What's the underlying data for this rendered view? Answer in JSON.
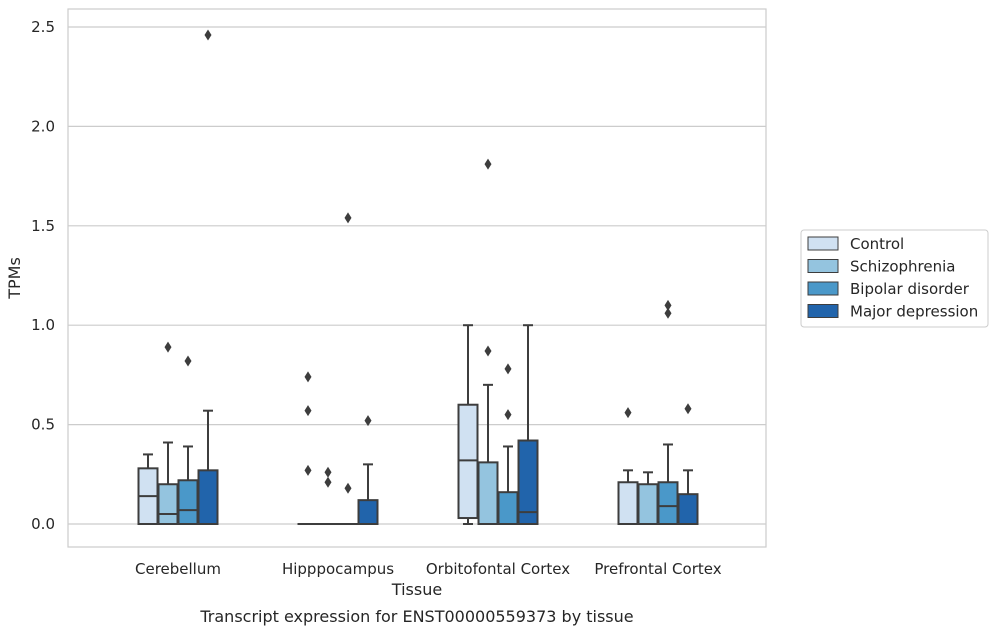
{
  "caption": "Transcript expression for ENST00000559373 by tissue",
  "chart_data": {
    "type": "box",
    "title": "",
    "xlabel": "Tissue",
    "ylabel": "TPMs",
    "ylim": [
      -0.12,
      2.59
    ],
    "yticks": [
      "0.0",
      "0.5",
      "1.0",
      "1.5",
      "2.0",
      "2.5"
    ],
    "ytick_values": [
      0,
      0.5,
      1.0,
      1.5,
      2.0,
      2.5
    ],
    "grid": "horizontal",
    "legend_position": "right",
    "categories": [
      "Cerebellum",
      "Hipppocampus",
      "Orbitofontal Cortex",
      "Prefrontal Cortex"
    ],
    "series": [
      {
        "name": "Control",
        "color": "#d0e1f2",
        "boxes": [
          {
            "whisker_low": 0,
            "q1": 0,
            "median": 0.14,
            "q3": 0.28,
            "whisker_high": 0.35,
            "outliers": []
          },
          {
            "whisker_low": 0,
            "q1": 0,
            "median": 0,
            "q3": 0,
            "whisker_high": 0,
            "outliers": [
              0.74,
              0.57,
              0.27
            ]
          },
          {
            "whisker_low": 0,
            "q1": 0.03,
            "median": 0.32,
            "q3": 0.6,
            "whisker_high": 1.0,
            "outliers": []
          },
          {
            "whisker_low": 0,
            "q1": 0,
            "median": 0,
            "q3": 0.21,
            "whisker_high": 0.27,
            "outliers": [
              0.56
            ]
          }
        ]
      },
      {
        "name": "Schizophrenia",
        "color": "#94c4df",
        "boxes": [
          {
            "whisker_low": 0,
            "q1": 0,
            "median": 0.05,
            "q3": 0.2,
            "whisker_high": 0.41,
            "outliers": [
              0.89
            ]
          },
          {
            "whisker_low": 0,
            "q1": 0,
            "median": 0,
            "q3": 0,
            "whisker_high": 0,
            "outliers": [
              0.26,
              0.21
            ]
          },
          {
            "whisker_low": 0,
            "q1": 0,
            "median": 0,
            "q3": 0.31,
            "whisker_high": 0.7,
            "outliers": [
              0.87,
              1.81
            ]
          },
          {
            "whisker_low": 0,
            "q1": 0,
            "median": 0,
            "q3": 0.2,
            "whisker_high": 0.26,
            "outliers": []
          }
        ]
      },
      {
        "name": "Bipolar disorder",
        "color": "#4a98c9",
        "boxes": [
          {
            "whisker_low": 0,
            "q1": 0,
            "median": 0.07,
            "q3": 0.22,
            "whisker_high": 0.39,
            "outliers": [
              0.82
            ]
          },
          {
            "whisker_low": 0,
            "q1": 0,
            "median": 0,
            "q3": 0,
            "whisker_high": 0,
            "outliers": [
              0.18,
              1.54
            ]
          },
          {
            "whisker_low": 0,
            "q1": 0,
            "median": 0,
            "q3": 0.16,
            "whisker_high": 0.39,
            "outliers": [
              0.78,
              0.55
            ]
          },
          {
            "whisker_low": 0,
            "q1": 0,
            "median": 0.09,
            "q3": 0.21,
            "whisker_high": 0.4,
            "outliers": [
              1.1,
              1.06
            ]
          }
        ]
      },
      {
        "name": "Major depression",
        "color": "#2164ab",
        "boxes": [
          {
            "whisker_low": 0,
            "q1": 0,
            "median": 0,
            "q3": 0.27,
            "whisker_high": 0.57,
            "outliers": [
              2.46
            ]
          },
          {
            "whisker_low": 0,
            "q1": 0,
            "median": 0,
            "q3": 0.12,
            "whisker_high": 0.3,
            "outliers": [
              0.52
            ]
          },
          {
            "whisker_low": 0,
            "q1": 0,
            "median": 0.06,
            "q3": 0.42,
            "whisker_high": 1.0,
            "outliers": []
          },
          {
            "whisker_low": 0,
            "q1": 0,
            "median": 0,
            "q3": 0.15,
            "whisker_high": 0.27,
            "outliers": [
              0.58
            ]
          }
        ]
      }
    ]
  }
}
